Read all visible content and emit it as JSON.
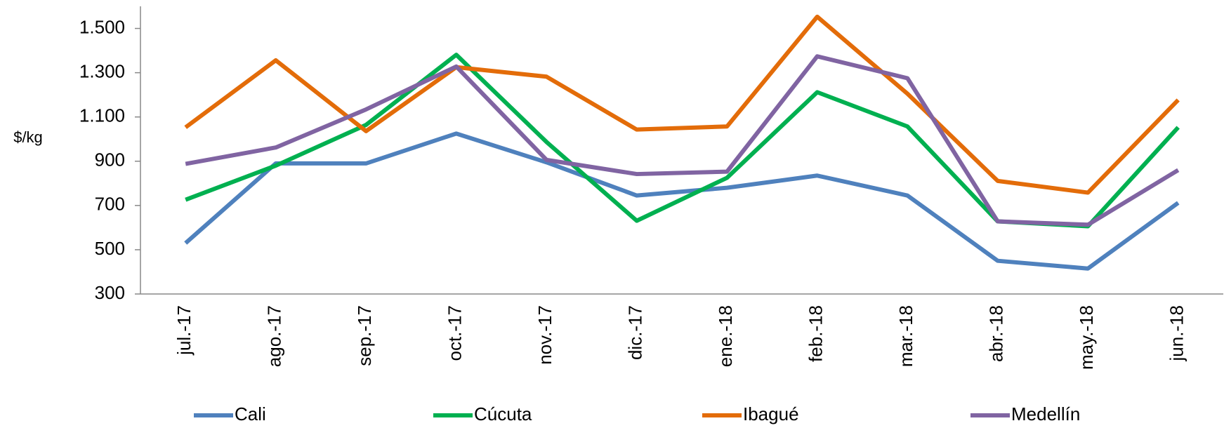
{
  "chart_data": {
    "type": "line",
    "y_label": "$/kg",
    "categories": [
      "jul.-17",
      "ago.-17",
      "sep.-17",
      "oct.-17",
      "nov.-17",
      "dic.-17",
      "ene.-18",
      "feb.-18",
      "mar.-18",
      "abr.-18",
      "may.-18",
      "jun.-18"
    ],
    "series": [
      {
        "name": "Cali",
        "color": "#4f81bd",
        "values": [
          530,
          890,
          890,
          1025,
          895,
          745,
          780,
          835,
          745,
          450,
          415,
          712
        ]
      },
      {
        "name": "Cúcuta",
        "color": "#00b050",
        "values": [
          726,
          880,
          1064,
          1381,
          987,
          631,
          825,
          1212,
          1057,
          628,
          606,
          1053
        ]
      },
      {
        "name": "Ibagué",
        "color": "#e36c09",
        "values": [
          1053,
          1356,
          1036,
          1325,
          1282,
          1043,
          1057,
          1553,
          1205,
          811,
          758,
          1177
        ]
      },
      {
        "name": "Medellín",
        "color": "#8064a2",
        "values": [
          888,
          962,
          1134,
          1328,
          906,
          842,
          853,
          1374,
          1275,
          628,
          613,
          860
        ]
      }
    ],
    "ylim": [
      300,
      1600
    ],
    "yticks": [
      300,
      500,
      700,
      900,
      {
        "value": 1100,
        "label": "1.100"
      },
      {
        "value": 1300,
        "label": "1.300"
      },
      {
        "value": 1500,
        "label": "1.500"
      }
    ],
    "legend": "bottom"
  }
}
